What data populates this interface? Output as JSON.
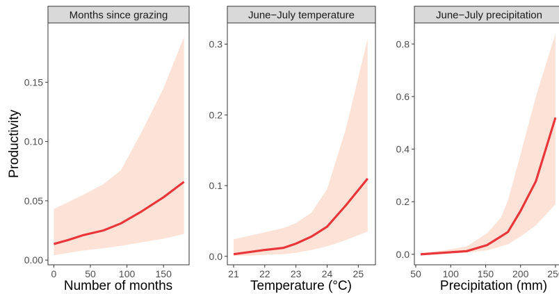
{
  "chart_data": [
    {
      "type": "line",
      "title": "Months since grazing",
      "xlabel": "Number of months",
      "ylabel": "Productivity",
      "xlim": [
        -8,
        185
      ],
      "ylim": [
        -0.004,
        0.2
      ],
      "xticks": [
        0,
        50,
        100,
        150
      ],
      "yticks": [
        0.0,
        0.05,
        0.1,
        0.15
      ],
      "xtick_labels": [
        "0",
        "50",
        "100",
        "150"
      ],
      "ytick_labels": [
        "0.00",
        "0.05",
        "0.10",
        "0.15"
      ],
      "grid": false,
      "line_color": "#e8363a",
      "band_color": "#fde3d7",
      "series": [
        {
          "x": [
            0,
            20,
            40,
            68,
            92,
            120,
            150,
            178
          ],
          "y": [
            0.0135,
            0.017,
            0.021,
            0.025,
            0.031,
            0.041,
            0.053,
            0.066
          ],
          "lower": [
            0.004,
            0.006,
            0.008,
            0.01,
            0.012,
            0.015,
            0.018,
            0.022
          ],
          "upper": [
            0.043,
            0.049,
            0.055,
            0.064,
            0.076,
            0.108,
            0.145,
            0.188
          ]
        }
      ]
    },
    {
      "type": "line",
      "title": "June−July temperature",
      "xlabel": "Temperature (°C)",
      "ylabel": "",
      "xlim": [
        20.8,
        25.55
      ],
      "ylim": [
        -0.012,
        0.33
      ],
      "xticks": [
        21,
        22,
        23,
        24,
        25
      ],
      "yticks": [
        0.0,
        0.1,
        0.2,
        0.3
      ],
      "xtick_labels": [
        "21",
        "22",
        "23",
        "24",
        "25"
      ],
      "ytick_labels": [
        "0.0",
        "0.1",
        "0.2",
        "0.3"
      ],
      "grid": false,
      "line_color": "#e8363a",
      "band_color": "#fde3d7",
      "series": [
        {
          "x": [
            21,
            21.5,
            22,
            22.6,
            23,
            23.5,
            24,
            24.6,
            25.3
          ],
          "y": [
            0.003,
            0.006,
            0.009,
            0.012,
            0.018,
            0.028,
            0.042,
            0.072,
            0.11
          ],
          "lower": [
            0.0005,
            0.001,
            0.002,
            0.003,
            0.005,
            0.009,
            0.014,
            0.023,
            0.035
          ],
          "upper": [
            0.024,
            0.029,
            0.034,
            0.04,
            0.047,
            0.062,
            0.095,
            0.18,
            0.308
          ]
        }
      ]
    },
    {
      "type": "line",
      "title": "June−July precipitation",
      "xlabel": "Precipitation (mm)",
      "ylabel": "",
      "xlim": [
        48,
        262
      ],
      "ylim": [
        -0.04,
        0.88
      ],
      "xticks": [
        50,
        100,
        150,
        200,
        250
      ],
      "yticks": [
        0.0,
        0.2,
        0.4,
        0.6,
        0.8
      ],
      "xtick_labels": [
        "50",
        "100",
        "150",
        "200",
        "250"
      ],
      "ytick_labels": [
        "0.0",
        "0.2",
        "0.4",
        "0.6",
        "0.8"
      ],
      "grid": false,
      "line_color": "#e8363a",
      "band_color": "#fde3d7",
      "series": [
        {
          "x": [
            57,
            90,
            123,
            152,
            172,
            182,
            200,
            222,
            250
          ],
          "y": [
            0.0,
            0.006,
            0.012,
            0.035,
            0.068,
            0.085,
            0.165,
            0.278,
            0.52
          ],
          "lower": [
            0.0,
            0.002,
            0.006,
            0.015,
            0.03,
            0.038,
            0.068,
            0.11,
            0.19
          ],
          "upper": [
            0.004,
            0.015,
            0.03,
            0.08,
            0.14,
            0.205,
            0.38,
            0.6,
            0.84
          ]
        }
      ]
    }
  ]
}
